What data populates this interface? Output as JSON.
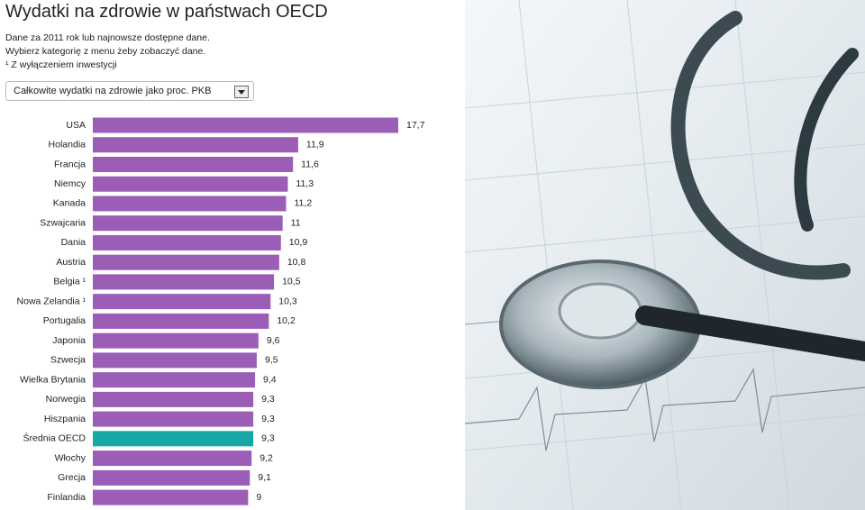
{
  "chart_data": {
    "type": "bar",
    "orientation": "horizontal",
    "title": "Wydatki na zdrowie w państwach OECD",
    "subtitle": [
      "Dane za 2011 rok lub najnowsze dostępne dane.",
      "Wybierz kategorię z menu żeby zobaczyć dane."
    ],
    "footnote": "¹ Z wyłączeniem inwestycji",
    "dropdown": "Całkowite wydatki na zdrowie jako proc. PKB",
    "categories": [
      "USA",
      "Holandia",
      "Francja",
      "Niemcy",
      "Kanada",
      "Szwajcaria",
      "Dania",
      "Austria",
      "Belgia ¹",
      "Nowa Zelandia ¹",
      "Portugalia",
      "Japonia",
      "Szwecja",
      "Wielka Brytania",
      "Norwegia",
      "Hiszpania",
      "Średnia OECD",
      "Włochy",
      "Grecja",
      "Finlandia"
    ],
    "values": [
      17.7,
      11.9,
      11.6,
      11.3,
      11.2,
      11,
      10.9,
      10.8,
      10.5,
      10.3,
      10.2,
      9.6,
      9.5,
      9.4,
      9.3,
      9.3,
      9.3,
      9.2,
      9.1,
      9
    ],
    "value_labels": [
      "17,7",
      "11,9",
      "11,6",
      "11,3",
      "11,2",
      "11",
      "10,9",
      "10,8",
      "10,5",
      "10,3",
      "10,2",
      "9,6",
      "9,5",
      "9,4",
      "9,3",
      "9,3",
      "9,3",
      "9,2",
      "9,1",
      "9"
    ],
    "colors": [
      "#9b5db5",
      "#9b5db5",
      "#9b5db5",
      "#9b5db5",
      "#9b5db5",
      "#9b5db5",
      "#9b5db5",
      "#9b5db5",
      "#9b5db5",
      "#9b5db5",
      "#9b5db5",
      "#9b5db5",
      "#9b5db5",
      "#9b5db5",
      "#9b5db5",
      "#9b5db5",
      "#17a8a6",
      "#9b5db5",
      "#9b5db5",
      "#9b5db5"
    ]
  }
}
